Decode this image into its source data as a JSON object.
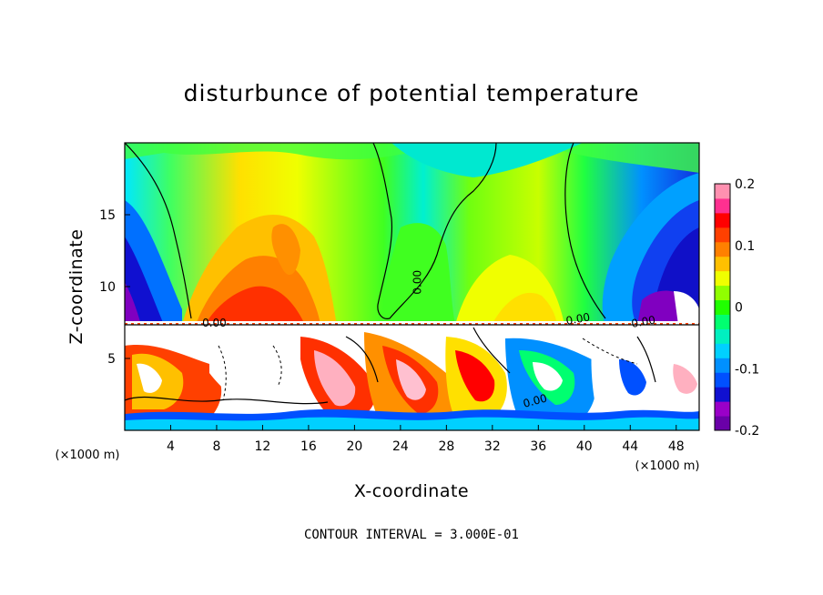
{
  "chart_data": {
    "type": "heatmap",
    "title": "disturbunce of potential temperature",
    "xlabel": "X-coordinate",
    "ylabel": "Z-coordinate",
    "x_unit_label": "(×1000 m)",
    "x_ticks": [
      4,
      8,
      12,
      16,
      20,
      24,
      28,
      32,
      36,
      40,
      44,
      48
    ],
    "y_ticks": [
      5,
      10,
      15
    ],
    "xlim": [
      0,
      50
    ],
    "ylim": [
      0,
      20
    ],
    "colorbar": {
      "ticks": [
        "0.2",
        "0.1",
        "0",
        "-0.1",
        "-0.2"
      ],
      "values": [
        0.2,
        0.1,
        0,
        -0.1,
        -0.2
      ],
      "range": [
        -0.2,
        0.2
      ],
      "colors": [
        "#6a00a8",
        "#9a00c8",
        "#1010d0",
        "#0050ff",
        "#0090ff",
        "#00d0ff",
        "#00f0c0",
        "#00ff70",
        "#20ff00",
        "#90ff00",
        "#f0ff00",
        "#ffc000",
        "#ff8000",
        "#ff4000",
        "#ff0000",
        "#ff3090",
        "#ff90b0"
      ]
    },
    "contour_labels": [
      "0.00",
      "0.00",
      "0.00",
      "0.00",
      "0.00"
    ],
    "footnote": "CONTOUR INTERVAL = 3.000E-01"
  }
}
